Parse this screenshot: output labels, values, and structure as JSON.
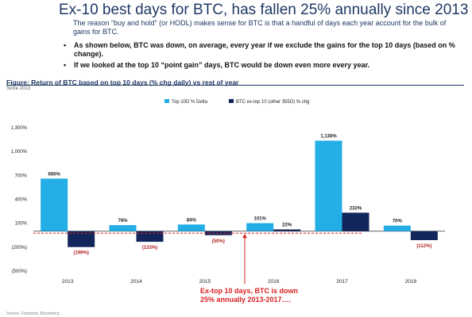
{
  "page": {
    "headline": "Ex-10 best days for BTC, has fallen 25% annually since 2013",
    "intro": "The reason “buy and hold” (or HODL) makes sense for BTC is that a handful of days each year account for the bulk of gains for BTC.",
    "bullets": [
      "As shown below, BTC was down, on average, every year if we exclude the gains for the top 10 days (based on % change).",
      "If we looked at the top 10 “point gain” days, BTC would be down even more every year."
    ],
    "figure_title": "Figure: Return of BTC based on top 10 days (% chg daily) vs rest of year",
    "figure_subtitle": "Since 2013",
    "annotation": "Ex-top 10 days, BTC is down 25% annually 2013-2017….",
    "source": "Source: Fundstrat, Bloomberg"
  },
  "colors": {
    "series_top10": "#23aee5",
    "series_ex_top10": "#13265c",
    "reference_line": "#d92020",
    "negative_label": "#b22222",
    "heading": "#1f3864"
  },
  "chart_data": {
    "type": "bar",
    "title": "Figure: Return of BTC based on top 10 days (% chg daily) vs rest of year",
    "subtitle": "Since 2013",
    "categories": [
      "2013",
      "2014",
      "2015",
      "2016",
      "2017",
      "2018"
    ],
    "series": [
      {
        "name": "Top 10D % Delta",
        "values": [
          660,
          76,
          84,
          101,
          1136,
          70
        ],
        "labels": [
          "660%",
          "76%",
          "84%",
          "101%",
          "1,136%",
          "70%"
        ]
      },
      {
        "name": "BTC ex-top 10 (other 355D) % chg",
        "values": [
          -199,
          -133,
          -50,
          22,
          232,
          -112
        ],
        "labels": [
          "(199%)",
          "(133%)",
          "(50%)",
          "22%",
          "232%",
          "(112%)"
        ]
      }
    ],
    "y_ticks": [
      1300,
      1000,
      700,
      400,
      100,
      -200,
      -500
    ],
    "y_tick_labels": [
      "1,300%",
      "1,000%",
      "700%",
      "400%",
      "100%",
      "(200%)",
      "(500%)"
    ],
    "ylim": [
      -500,
      1300
    ],
    "reference_line": -25,
    "legend_position": "top",
    "grid": false
  }
}
